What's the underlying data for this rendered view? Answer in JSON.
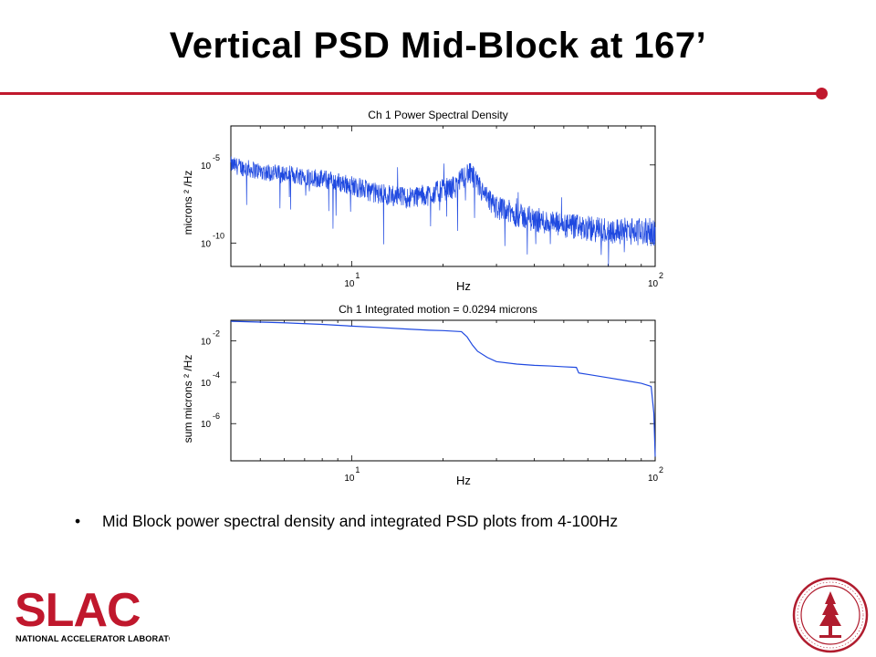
{
  "slide": {
    "title": "Vertical PSD Mid-Block at 167’",
    "bullet": "Mid Block power spectral density and integrated PSD plots from 4-100Hz",
    "accent_color": "#c0182d",
    "logo": {
      "name": "SLAC",
      "subtitle": "NATIONAL ACCELERATOR LABORATORY"
    },
    "seal": {
      "name": "stanford-university-seal"
    }
  },
  "chart_data": [
    {
      "type": "line",
      "title": "Ch 1  Power Spectral Density",
      "xlabel": "Hz",
      "ylabel": "microns ² /Hz",
      "xscale": "log",
      "yscale": "log",
      "xlim": [
        4,
        100
      ],
      "ylim_exp": [
        -11.5,
        -2.5
      ],
      "x_ticks": [
        {
          "base": "10",
          "exp": "1",
          "value": 10
        },
        {
          "base": "10",
          "exp": "2",
          "value": 100
        }
      ],
      "y_ticks": [
        {
          "base": "10",
          "exp": "-5",
          "value_exp": -5
        },
        {
          "base": "10",
          "exp": "-10",
          "value_exp": -10
        }
      ],
      "color": "#1f49e0",
      "series": [
        {
          "x": [
            4,
            5,
            6,
            7,
            8,
            10,
            12,
            15,
            18,
            20,
            22,
            24,
            25,
            26,
            28,
            30,
            35,
            40,
            45,
            50,
            55,
            60,
            70,
            80,
            90,
            100
          ],
          "y_exp": [
            -5.0,
            -5.4,
            -5.6,
            -5.7,
            -5.9,
            -6.3,
            -6.8,
            -7.1,
            -6.9,
            -6.6,
            -6.4,
            -5.5,
            -5.7,
            -6.3,
            -7.2,
            -7.7,
            -8.2,
            -8.5,
            -8.7,
            -8.9,
            -9.0,
            -9.1,
            -9.2,
            -9.2,
            -9.3,
            -9.3
          ]
        }
      ]
    },
    {
      "type": "line",
      "title": "Ch 1  Integrated motion =  0.0294 microns",
      "xlabel": "Hz",
      "ylabel": "sum microns ² /Hz",
      "xscale": "log",
      "yscale": "log",
      "xlim": [
        4,
        100
      ],
      "ylim_exp": [
        -7.8,
        -1.0
      ],
      "x_ticks": [
        {
          "base": "10",
          "exp": "1",
          "value": 10
        },
        {
          "base": "10",
          "exp": "2",
          "value": 100
        }
      ],
      "y_ticks": [
        {
          "base": "10",
          "exp": "-2",
          "value_exp": -2
        },
        {
          "base": "10",
          "exp": "-4",
          "value_exp": -4
        },
        {
          "base": "10",
          "exp": "-6",
          "value_exp": -6
        }
      ],
      "color": "#1f49e0",
      "series": [
        {
          "x": [
            4,
            6,
            8,
            10,
            12,
            15,
            18,
            20,
            23,
            24,
            25,
            26,
            28,
            30,
            35,
            40,
            45,
            50,
            55,
            56,
            60,
            70,
            80,
            90,
            97,
            99,
            100
          ],
          "y_exp": [
            -1.05,
            -1.12,
            -1.2,
            -1.28,
            -1.34,
            -1.42,
            -1.48,
            -1.5,
            -1.55,
            -1.8,
            -2.2,
            -2.5,
            -2.8,
            -3.0,
            -3.12,
            -3.18,
            -3.21,
            -3.25,
            -3.28,
            -3.55,
            -3.62,
            -3.78,
            -3.92,
            -4.05,
            -4.2,
            -5.5,
            -7.6
          ]
        }
      ]
    }
  ]
}
